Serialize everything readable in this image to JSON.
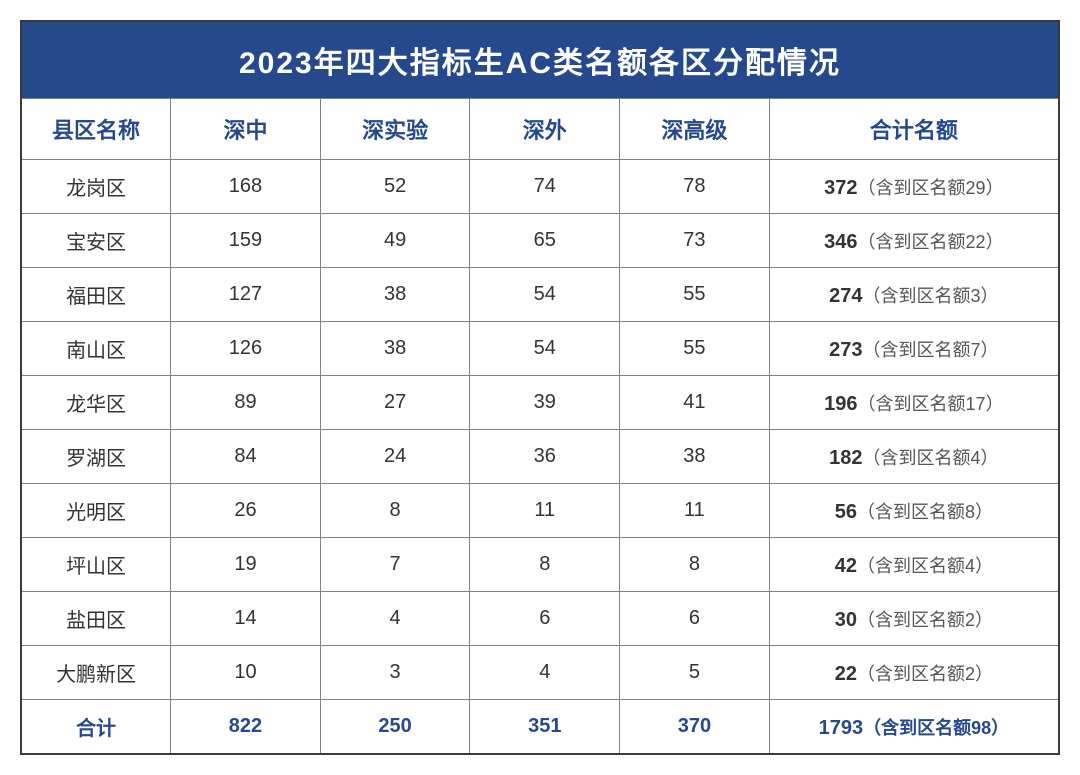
{
  "colors": {
    "header_bg": "#26498d",
    "header_text": "#ffffff",
    "accent_blue": "#26498d",
    "body_text": "#333333",
    "note_text": "#555555",
    "border_outer": "#3b3b3b",
    "border_inner": "#808080"
  },
  "title": "2023年四大指标生AC类名额各区分配情况",
  "columns": [
    "县区名称",
    "深中",
    "深实验",
    "深外",
    "深高级",
    "合计名额"
  ],
  "note_prefix": "（含到区名额",
  "note_suffix": "）",
  "rows": [
    {
      "district": "龙岗区",
      "v": [
        168,
        52,
        74,
        78
      ],
      "total": 372,
      "extra": 29
    },
    {
      "district": "宝安区",
      "v": [
        159,
        49,
        65,
        73
      ],
      "total": 346,
      "extra": 22
    },
    {
      "district": "福田区",
      "v": [
        127,
        38,
        54,
        55
      ],
      "total": 274,
      "extra": 3
    },
    {
      "district": "南山区",
      "v": [
        126,
        38,
        54,
        55
      ],
      "total": 273,
      "extra": 7
    },
    {
      "district": "龙华区",
      "v": [
        89,
        27,
        39,
        41
      ],
      "total": 196,
      "extra": 17
    },
    {
      "district": "罗湖区",
      "v": [
        84,
        24,
        36,
        38
      ],
      "total": 182,
      "extra": 4
    },
    {
      "district": "光明区",
      "v": [
        26,
        8,
        11,
        11
      ],
      "total": 56,
      "extra": 8
    },
    {
      "district": "坪山区",
      "v": [
        19,
        7,
        8,
        8
      ],
      "total": 42,
      "extra": 4
    },
    {
      "district": "盐田区",
      "v": [
        14,
        4,
        6,
        6
      ],
      "total": 30,
      "extra": 2
    },
    {
      "district": "大鹏新区",
      "v": [
        10,
        3,
        4,
        5
      ],
      "total": 22,
      "extra": 2
    }
  ],
  "footer": {
    "label": "合计",
    "v": [
      822,
      250,
      351,
      370
    ],
    "total": 1793,
    "extra": 98
  }
}
